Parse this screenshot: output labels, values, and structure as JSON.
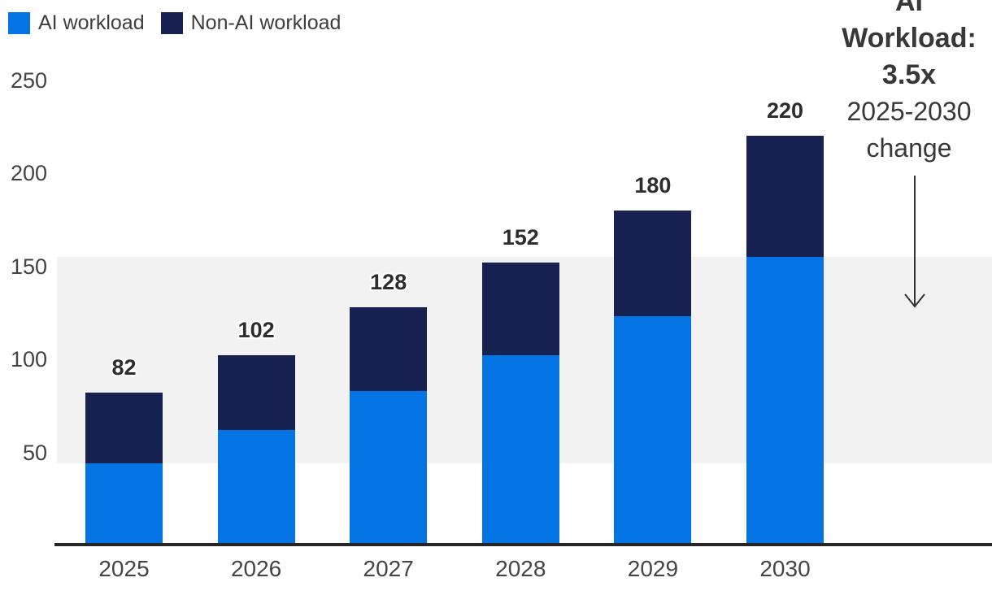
{
  "legend": {
    "items": [
      {
        "label": "AI workload",
        "color": "#0473E4"
      },
      {
        "label": "Non-AI workload",
        "color": "#172253"
      }
    ]
  },
  "callout": {
    "lines": [
      {
        "text": "AI",
        "bold": true
      },
      {
        "text": "Workload:",
        "bold": true
      },
      {
        "text": "3.5x",
        "bold": true
      },
      {
        "text": "2025-2030",
        "bold": false
      },
      {
        "text": "change",
        "bold": false
      }
    ],
    "arrow_icon": "down-arrow"
  },
  "colors": {
    "ai": "#0473E4",
    "non_ai": "#172253",
    "highlight_band": "#F2F2F2",
    "axis": "#262626",
    "text": "#3E3E3E"
  },
  "chart_data": {
    "type": "bar",
    "stacked": true,
    "title": "",
    "xlabel": "",
    "ylabel": "",
    "categories": [
      "2025",
      "2026",
      "2027",
      "2028",
      "2029",
      "2030"
    ],
    "series": [
      {
        "name": "AI workload",
        "color": "#0473E4",
        "values": [
          44,
          62,
          83,
          102,
          123,
          155
        ]
      },
      {
        "name": "Non-AI workload",
        "color": "#172253",
        "values": [
          38,
          40,
          45,
          50,
          57,
          65
        ]
      }
    ],
    "totals": [
      82,
      102,
      128,
      152,
      180,
      220
    ],
    "y_ticks": [
      250,
      200,
      150,
      100,
      50
    ],
    "ylim": [
      0,
      250
    ],
    "grid": false,
    "legend_position": "top-left",
    "highlight_band": {
      "from": 44,
      "to": 155,
      "color": "#F2F2F2"
    }
  }
}
